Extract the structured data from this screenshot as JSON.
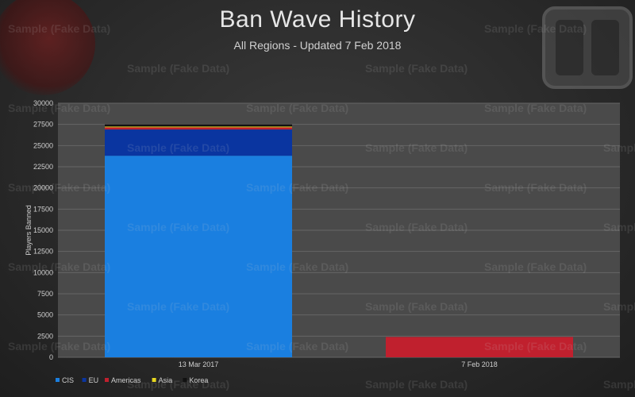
{
  "header": {
    "title": "Ban Wave History",
    "subtitle": "All Regions - Updated  7 Feb 2018"
  },
  "watermark_text": "Sample (Fake Data)",
  "chart_data": {
    "type": "bar",
    "stacked": true,
    "title": "Ban Wave History",
    "subtitle": "All Regions - Updated  7 Feb 2018",
    "xlabel": "",
    "ylabel": "Players Banned",
    "ylim": [
      0,
      30000
    ],
    "yticks": [
      0,
      2500,
      5000,
      7500,
      10000,
      12500,
      15000,
      17500,
      20000,
      22500,
      25000,
      27500,
      30000
    ],
    "categories": [
      "13 Mar 2017",
      "7 Feb 2018"
    ],
    "series": [
      {
        "name": "CIS",
        "color": "#1a7fe0",
        "values": [
          23800,
          0
        ]
      },
      {
        "name": "EU",
        "color": "#0a35a0",
        "values": [
          3100,
          0
        ]
      },
      {
        "name": "Americas",
        "color": "#c0202e",
        "values": [
          250,
          2400
        ]
      },
      {
        "name": "Asia",
        "color": "#e8d820",
        "values": [
          100,
          0
        ]
      },
      {
        "name": "Korea",
        "color": "#111111",
        "values": [
          250,
          0
        ]
      }
    ],
    "grid": true,
    "legend_position": "bottom-left"
  }
}
